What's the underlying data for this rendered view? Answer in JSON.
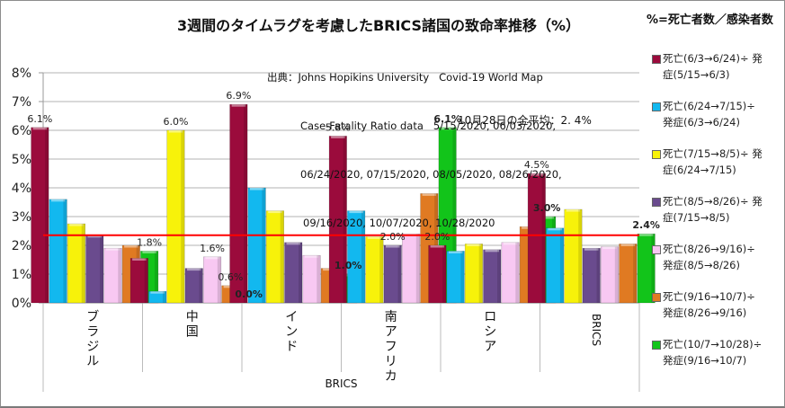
{
  "chart_data": {
    "type": "bar",
    "title": "3週間のタイムラグを考慮したBRICS諸国の致命率推移（%）",
    "source_lines": [
      "出典：Johns Hopikins University   Covid-19 World Map",
      "Case-Fatality Ratio data   5/15/2020, 06/03/2020,",
      "06/24/2020, 07/15/2020, 08/05/2020, 08/26/2020,",
      "09/16/2020, 10/07/2020, 10/28/2020"
    ],
    "legend_title": "%=死亡者数／感染者数",
    "legend_placement": "right",
    "xlabel": "BRICS",
    "ylabel": "",
    "ylim": [
      0,
      8
    ],
    "yticks": [
      "0%",
      "1%",
      "2%",
      "3%",
      "4%",
      "5%",
      "6%",
      "7%",
      "8%"
    ],
    "grid": true,
    "categories": [
      "ブラジル",
      "中国",
      "インド",
      "南アフリカ",
      "ロシア",
      "BRICS"
    ],
    "series": [
      {
        "name": "死亡(6/3→6/24)÷ 発症(5/15→6/3)",
        "color": "#9b0b3c",
        "values": [
          6.1,
          1.55,
          6.9,
          5.8,
          2.0,
          4.5
        ]
      },
      {
        "name": "死亡(6/24→7/15)÷ 発症(6/3→6/24)",
        "color": "#12b8ef",
        "values": [
          3.6,
          0.4,
          4.0,
          3.2,
          1.8,
          2.6
        ]
      },
      {
        "name": "死亡(7/15→8/5)÷ 発症(6/24→7/15)",
        "color": "#f7f20a",
        "values": [
          2.75,
          6.0,
          3.2,
          2.3,
          2.05,
          3.25
        ]
      },
      {
        "name": "死亡(8/5→8/26)÷ 発症(7/15→8/5)",
        "color": "#6a4b8e",
        "values": [
          2.35,
          1.2,
          2.1,
          2.0,
          1.85,
          1.9
        ]
      },
      {
        "name": "死亡(8/26→9/16)÷ 発症(8/5→8/26)",
        "color": "#f8c8f2",
        "values": [
          1.9,
          1.6,
          1.65,
          2.4,
          2.1,
          1.95
        ]
      },
      {
        "name": "死亡(9/16→10/7)÷ 発症(8/26→9/16)",
        "color": "#e07a22",
        "values": [
          2.0,
          0.6,
          1.2,
          3.8,
          2.65,
          2.05
        ]
      },
      {
        "name": "死亡(10/7→10/28)÷ 発症(9/16→10/7)",
        "color": "#12c41a",
        "values": [
          1.8,
          0.0,
          1.0,
          6.1,
          3.0,
          2.4
        ]
      }
    ],
    "legend_lines": [
      [
        "死亡(6/3→6/24)÷ 発",
        "症(5/15→6/3)"
      ],
      [
        "死亡(6/24→7/15)÷",
        "発症(6/3→6/24)"
      ],
      [
        "死亡(7/15→8/5)÷ 発",
        "症(6/24→7/15)"
      ],
      [
        "死亡(8/5→8/26)÷ 発",
        "症(7/15→8/5)"
      ],
      [
        "死亡(8/26→9/16)÷",
        "発症(8/5→8/26)"
      ],
      [
        "死亡(9/16→10/7)÷",
        "発症(8/26→9/16)"
      ],
      [
        "死亡(10/7→10/28)÷",
        "発症(9/16→10/7)"
      ]
    ],
    "data_labels": [
      {
        "category": 0,
        "series": 0,
        "text": "6.1%",
        "bold": false
      },
      {
        "category": 0,
        "series": 6,
        "text": "1.8%",
        "bold": false
      },
      {
        "category": 1,
        "series": 2,
        "text": "6.0%",
        "bold": false
      },
      {
        "category": 1,
        "series": 4,
        "text": "1.6%",
        "bold": false
      },
      {
        "category": 1,
        "series": 5,
        "text": "0.6%",
        "bold": false
      },
      {
        "category": 1,
        "series": 6,
        "text": "0.0%",
        "bold": true
      },
      {
        "category": 2,
        "series": 0,
        "text": "6.9%",
        "bold": false
      },
      {
        "category": 2,
        "series": 6,
        "text": "1.0%",
        "bold": true
      },
      {
        "category": 3,
        "series": 0,
        "text": "5.8%",
        "bold": false
      },
      {
        "category": 3,
        "series": 3,
        "text": "2.0%",
        "bold": false
      },
      {
        "category": 3,
        "series": 6,
        "text": "6.1%",
        "bold": true
      },
      {
        "category": 4,
        "series": 0,
        "text": "2.0%",
        "bold": false
      },
      {
        "category": 4,
        "series": 6,
        "text": "3.0%",
        "bold": true
      },
      {
        "category": 5,
        "series": 0,
        "text": "4.5%",
        "bold": false
      },
      {
        "category": 5,
        "series": 6,
        "text": "2.4%",
        "bold": true
      }
    ],
    "reference_line": {
      "value": 2.35,
      "color": "#ff0000",
      "label": "10月28日の全平均：2. 4%"
    }
  }
}
